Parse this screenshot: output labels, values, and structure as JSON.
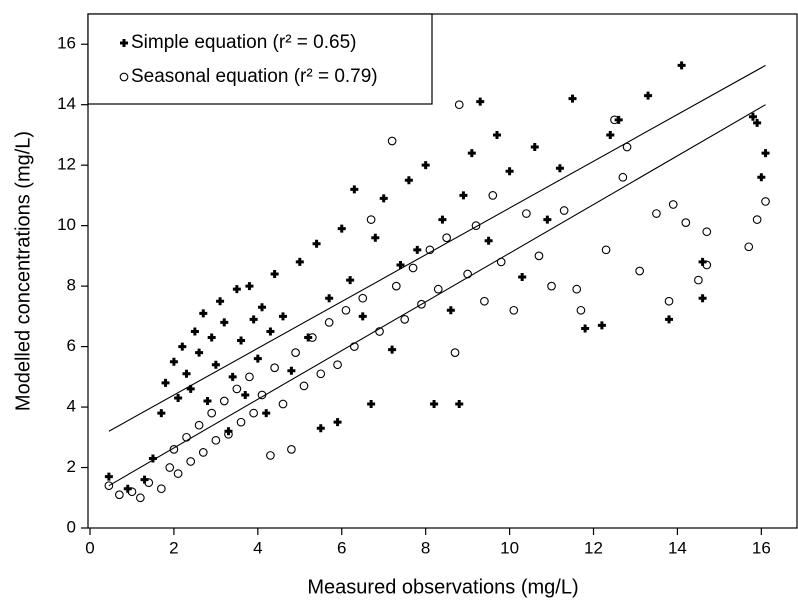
{
  "chart_data": {
    "type": "scatter",
    "x_label": "Measured observations (mg/L)",
    "y_label": "Modelled concentrations (mg/L)",
    "xlim": [
      0,
      16.85
    ],
    "ylim": [
      0,
      17
    ],
    "xticks": [
      0,
      2,
      4,
      6,
      8,
      10,
      12,
      14,
      16
    ],
    "yticks": [
      0,
      2,
      4,
      6,
      8,
      10,
      12,
      14,
      16
    ],
    "legend": "upper left",
    "series": [
      {
        "name": "Simple equation (r² = 0.65)",
        "marker": "plus",
        "color": "#000000",
        "x": [
          0.45,
          0.9,
          1.3,
          1.5,
          1.7,
          1.8,
          2.0,
          2.1,
          2.2,
          2.3,
          2.4,
          2.5,
          2.6,
          2.7,
          2.8,
          2.9,
          3.0,
          3.1,
          3.2,
          3.3,
          3.4,
          3.5,
          3.6,
          3.7,
          3.8,
          3.9,
          4.0,
          4.1,
          4.2,
          4.3,
          4.4,
          4.6,
          4.8,
          5.0,
          5.2,
          5.4,
          5.5,
          5.7,
          5.9,
          6.0,
          6.2,
          6.3,
          6.5,
          6.7,
          6.8,
          7.0,
          7.2,
          7.4,
          7.6,
          7.8,
          8.0,
          8.2,
          8.4,
          8.6,
          8.8,
          8.9,
          9.1,
          9.3,
          9.5,
          9.7,
          10.0,
          10.3,
          10.6,
          10.9,
          11.2,
          11.5,
          11.8,
          12.2,
          12.4,
          12.6,
          13.3,
          13.8,
          14.1,
          14.6,
          14.6,
          15.8,
          16.0,
          16.1,
          15.9
        ],
        "values": [
          1.7,
          1.3,
          1.6,
          2.3,
          3.8,
          4.8,
          5.5,
          4.3,
          6.0,
          5.1,
          4.6,
          6.5,
          5.8,
          7.1,
          4.2,
          6.3,
          5.4,
          7.5,
          6.8,
          3.2,
          5.0,
          7.9,
          6.2,
          4.4,
          8.0,
          6.9,
          5.6,
          7.3,
          3.8,
          6.5,
          8.4,
          7.0,
          5.2,
          8.8,
          6.3,
          9.4,
          3.3,
          7.6,
          3.5,
          9.9,
          8.2,
          11.2,
          7.0,
          4.1,
          9.6,
          10.9,
          5.9,
          8.7,
          11.5,
          9.2,
          12.0,
          4.1,
          10.2,
          7.2,
          4.1,
          11.0,
          12.4,
          14.1,
          9.5,
          13.0,
          11.8,
          8.3,
          12.6,
          10.2,
          11.9,
          14.2,
          6.6,
          6.7,
          13.0,
          13.5,
          14.3,
          6.9,
          15.3,
          8.8,
          7.6,
          13.6,
          11.6,
          12.4,
          13.4
        ],
        "fit": {
          "x": [
            0.45,
            16.1
          ],
          "values": [
            3.2,
            15.3
          ]
        }
      },
      {
        "name": "Seasonal equation (r² = 0.79)",
        "marker": "circle",
        "color": "#000000",
        "x": [
          0.45,
          0.7,
          1.0,
          1.2,
          1.4,
          1.7,
          1.9,
          2.0,
          2.1,
          2.3,
          2.4,
          2.6,
          2.7,
          2.9,
          3.0,
          3.2,
          3.3,
          3.5,
          3.6,
          3.8,
          3.9,
          4.1,
          4.3,
          4.4,
          4.6,
          4.8,
          4.9,
          5.1,
          5.3,
          5.5,
          5.7,
          5.9,
          6.1,
          6.3,
          6.5,
          6.7,
          6.9,
          7.2,
          7.3,
          7.5,
          7.7,
          7.9,
          8.1,
          8.3,
          8.5,
          8.7,
          8.8,
          9.0,
          9.2,
          9.4,
          9.6,
          9.8,
          10.1,
          10.4,
          10.7,
          11.0,
          11.3,
          11.6,
          11.7,
          12.3,
          12.5,
          12.7,
          12.8,
          13.1,
          13.5,
          13.8,
          13.9,
          14.2,
          14.5,
          14.7,
          15.7,
          15.9,
          16.1,
          14.7
        ],
        "values": [
          1.4,
          1.1,
          1.2,
          1.0,
          1.5,
          1.3,
          2.0,
          2.6,
          1.8,
          3.0,
          2.2,
          3.4,
          2.5,
          3.8,
          2.9,
          4.2,
          3.1,
          4.6,
          3.5,
          5.0,
          3.8,
          4.4,
          2.4,
          5.3,
          4.1,
          2.6,
          5.8,
          4.7,
          6.3,
          5.1,
          6.8,
          5.4,
          7.2,
          6.0,
          7.6,
          10.2,
          6.5,
          12.8,
          8.0,
          6.9,
          8.6,
          7.4,
          9.2,
          7.9,
          9.6,
          5.8,
          14.0,
          8.4,
          10.0,
          7.5,
          11.0,
          8.8,
          7.2,
          10.4,
          9.0,
          8.0,
          10.5,
          7.9,
          7.2,
          9.2,
          13.5,
          11.6,
          12.6,
          8.5,
          10.4,
          7.5,
          10.7,
          10.1,
          8.2,
          9.8,
          9.3,
          10.2,
          10.8,
          8.7
        ],
        "fit": {
          "x": [
            0.45,
            16.1
          ],
          "values": [
            1.4,
            14.0
          ]
        }
      }
    ]
  }
}
